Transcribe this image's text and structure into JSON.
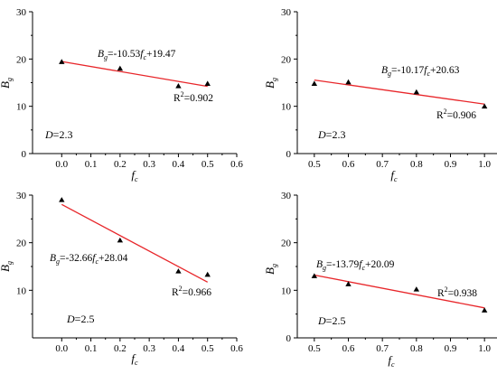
{
  "chart_data": [
    {
      "type": "scatter",
      "x": [
        0.0,
        0.2,
        0.4,
        0.5
      ],
      "y": [
        19.4,
        18.0,
        14.3,
        14.8
      ],
      "fit": {
        "slope": -10.53,
        "intercept": 19.47
      },
      "xlim": [
        -0.1,
        0.6
      ],
      "ylim": [
        0,
        30
      ],
      "xticks": [
        "0.0",
        "0.1",
        "0.2",
        "0.3",
        "0.4",
        "0.5",
        "0.6"
      ],
      "yticks": [
        "0",
        "10",
        "20",
        "30"
      ],
      "xlabel": {
        "base": "f",
        "sub": "c"
      },
      "ylabel": {
        "base": "B",
        "sub": "g"
      },
      "equation": {
        "lhs": "B",
        "lhs_sub": "g",
        "mid": "=-10.53",
        "var": "f",
        "var_sub": "c",
        "tail": "+19.47"
      },
      "r2": {
        "prefix": "R",
        "sup": "2",
        "value": "=0.902"
      },
      "dlabel": {
        "var": "D",
        "value": "=2.3"
      },
      "colors": {
        "fit": "#e8262a",
        "points": "#000000",
        "axis": "#000000"
      }
    },
    {
      "type": "scatter",
      "x": [
        0.5,
        0.6,
        0.8,
        1.0
      ],
      "y": [
        14.8,
        15.1,
        13.0,
        10.0
      ],
      "fit": {
        "slope": -10.17,
        "intercept": 20.63
      },
      "xlim": [
        0.45,
        1.05
      ],
      "ylim": [
        0,
        30
      ],
      "xticks": [
        "0.5",
        "0.6",
        "0.7",
        "0.8",
        "0.9",
        "1.0"
      ],
      "yticks": [
        "0",
        "10",
        "20",
        "30"
      ],
      "xlabel": {
        "base": "f",
        "sub": "c"
      },
      "ylabel": {
        "base": "B",
        "sub": "g"
      },
      "equation": {
        "lhs": "B",
        "lhs_sub": "g",
        "mid": "=-10.17",
        "var": "f",
        "var_sub": "c",
        "tail": "+20.63"
      },
      "r2": {
        "prefix": "R",
        "sup": "2",
        "value": "=0.906"
      },
      "dlabel": {
        "var": "D",
        "value": "=2.3"
      },
      "colors": {
        "fit": "#e8262a",
        "points": "#000000",
        "axis": "#000000"
      }
    },
    {
      "type": "scatter",
      "x": [
        0.0,
        0.2,
        0.4,
        0.5
      ],
      "y": [
        29.0,
        20.5,
        14.0,
        13.3
      ],
      "fit": {
        "slope": -32.66,
        "intercept": 28.04
      },
      "xlim": [
        -0.1,
        0.6
      ],
      "ylim": [
        0,
        30
      ],
      "xticks": [
        "0.0",
        "0.1",
        "0.2",
        "0.3",
        "0.4",
        "0.5",
        "0.6"
      ],
      "yticks": [
        "10",
        "20",
        "30"
      ],
      "xlabel": {
        "base": "f",
        "sub": "c"
      },
      "ylabel": {
        "base": "B",
        "sub": "g"
      },
      "equation": {
        "lhs": "B",
        "lhs_sub": "g",
        "mid": "=-32.66",
        "var": "f",
        "var_sub": "c",
        "tail": "+28.04"
      },
      "r2": {
        "prefix": "R",
        "sup": "2",
        "value": "=0.966"
      },
      "dlabel": {
        "var": "D",
        "value": "=2.5"
      },
      "colors": {
        "fit": "#e8262a",
        "points": "#000000",
        "axis": "#000000"
      }
    },
    {
      "type": "scatter",
      "x": [
        0.5,
        0.6,
        0.8,
        1.0
      ],
      "y": [
        13.0,
        11.3,
        10.2,
        5.8
      ],
      "fit": {
        "slope": -13.79,
        "intercept": 20.09
      },
      "xlim": [
        0.45,
        1.05
      ],
      "ylim": [
        0,
        30
      ],
      "xticks": [
        "0.5",
        "0.6",
        "0.7",
        "0.8",
        "0.9",
        "1.0"
      ],
      "yticks": [
        "0",
        "10",
        "20",
        "30"
      ],
      "xlabel": {
        "base": "f",
        "sub": "c"
      },
      "ylabel": {
        "base": "B",
        "sub": "g"
      },
      "equation": {
        "lhs": "B",
        "lhs_sub": "g",
        "mid": "=-13.79",
        "var": "f",
        "var_sub": "c",
        "tail": "+20.09"
      },
      "r2": {
        "prefix": "R",
        "sup": "2",
        "value": "=0.938"
      },
      "dlabel": {
        "var": "D",
        "value": "=2.5"
      },
      "colors": {
        "fit": "#e8262a",
        "points": "#000000",
        "axis": "#000000"
      }
    }
  ]
}
